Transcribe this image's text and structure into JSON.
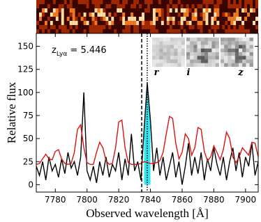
{
  "chart_data": {
    "type": "line",
    "xlabel": "Observed wavelength [Å]",
    "ylabel": "Relative flux",
    "annotation": {
      "symbol": "z",
      "subscript": "Lyα",
      "text": " = 5.446"
    },
    "inset_labels": [
      "r",
      "i",
      "z"
    ],
    "x": [
      7768,
      7770,
      7772,
      7774,
      7776,
      7778,
      7780,
      7782,
      7784,
      7786,
      7788,
      7790,
      7792,
      7794,
      7796,
      7798,
      7800,
      7802,
      7804,
      7806,
      7808,
      7810,
      7812,
      7814,
      7816,
      7818,
      7820,
      7822,
      7824,
      7826,
      7828,
      7830,
      7832,
      7834,
      7836,
      7838,
      7840,
      7842,
      7844,
      7846,
      7848,
      7850,
      7852,
      7854,
      7856,
      7858,
      7860,
      7862,
      7864,
      7866,
      7868,
      7870,
      7872,
      7874,
      7876,
      7878,
      7880,
      7882,
      7884,
      7886,
      7888,
      7890,
      7892,
      7894,
      7896,
      7898,
      7900,
      7902,
      7904,
      7906,
      7908
    ],
    "series": [
      {
        "color": "#000000",
        "values": [
          20,
          10,
          25,
          5,
          30,
          15,
          22,
          8,
          28,
          12,
          35,
          18,
          25,
          10,
          30,
          100,
          15,
          5,
          20,
          2,
          25,
          10,
          30,
          8,
          22,
          15,
          35,
          5,
          28,
          10,
          55,
          15,
          25,
          5,
          60,
          110,
          70,
          15,
          40,
          10,
          30,
          5,
          20,
          35,
          8,
          25,
          0,
          20,
          45,
          10,
          30,
          12,
          35,
          5,
          28,
          15,
          40,
          22,
          10,
          30,
          5,
          25,
          40,
          15,
          35,
          8,
          30,
          20,
          45,
          10,
          25
        ]
      },
      {
        "color": "#dd1111",
        "values": [
          22,
          23,
          28,
          33,
          28,
          27,
          36,
          38,
          28,
          23,
          22,
          23,
          35,
          60,
          65,
          40,
          24,
          22,
          22,
          35,
          46,
          40,
          26,
          22,
          23,
          40,
          68,
          70,
          40,
          24,
          22,
          22,
          22,
          23,
          25,
          24,
          23,
          23,
          24,
          26,
          35,
          55,
          74,
          72,
          45,
          28,
          35,
          55,
          50,
          32,
          40,
          62,
          60,
          36,
          26,
          30,
          42,
          35,
          27,
          38,
          57,
          50,
          30,
          24,
          30,
          40,
          36,
          32,
          46,
          45,
          30
        ]
      }
    ],
    "shaded_range": [
      7836,
      7840
    ],
    "shade_color": "#33e5ee",
    "vlines": [
      {
        "x": 7834.5,
        "style": "dashed"
      },
      {
        "x": 7838,
        "style": "dotted"
      }
    ],
    "xlim": [
      7768,
      7908
    ],
    "ylim": [
      -8,
      164
    ],
    "xticks": [
      7780,
      7800,
      7820,
      7840,
      7860,
      7880,
      7900
    ],
    "yticks": [
      0,
      25,
      50,
      75,
      100,
      125,
      150
    ]
  }
}
